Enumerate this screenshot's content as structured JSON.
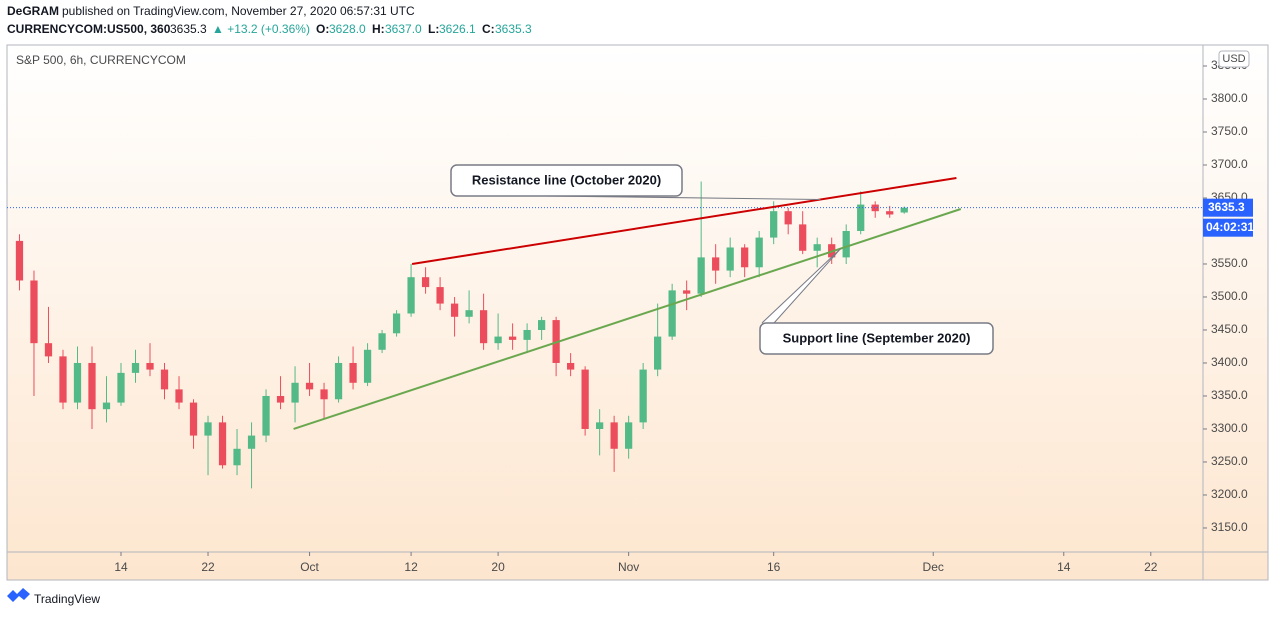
{
  "header": {
    "publisher": "DeGRAM",
    "published": "published on TradingView.com, November 27, 2020 06:57:31 UTC",
    "symbol": "CURRENCYCOM:US500, 360",
    "last": "3635.3",
    "change": "▲ +13.2 (+0.36%)",
    "o_label": "O:",
    "o": "3628.0",
    "h_label": "H:",
    "h": "3637.0",
    "l_label": "L:",
    "l": "3626.1",
    "c_label": "C:",
    "c": "3635.3"
  },
  "footer": {
    "brand": "TradingView"
  },
  "chart_data": {
    "type": "candlestick",
    "title": "S&P 500, 6h, CURRENCYCOM",
    "currency": "USD",
    "categories": [
      null,
      null,
      null,
      null,
      null,
      null,
      null,
      null,
      null,
      null,
      null,
      null,
      null,
      null,
      null,
      null,
      null,
      null,
      null,
      null,
      null,
      null,
      null,
      null,
      null,
      null,
      null,
      null,
      null,
      null,
      null,
      null,
      null,
      null,
      null,
      null,
      null,
      null,
      null,
      null,
      null,
      null,
      null,
      null,
      null,
      null,
      null,
      null,
      null,
      null,
      null,
      null,
      null,
      null,
      null,
      null,
      null,
      null,
      null,
      null,
      null,
      null
    ],
    "open": [
      3585,
      3525,
      3430,
      3410,
      3340,
      3400,
      3330,
      3340,
      3385,
      3400,
      3390,
      3360,
      3340,
      3290,
      3310,
      3245,
      3270,
      3290,
      3350,
      3340,
      3370,
      3360,
      3345,
      3400,
      3370,
      3420,
      3445,
      3475,
      3530,
      3515,
      3490,
      3470,
      3480,
      3430,
      3440,
      3435,
      3450,
      3465,
      3400,
      3390,
      3300,
      3310,
      3270,
      3310,
      3390,
      3440,
      3510,
      3505,
      3560,
      3540,
      3575,
      3545,
      3590,
      3630,
      3610,
      3570,
      3580,
      3560,
      3600,
      3640,
      3630,
      3628
    ],
    "high": [
      3595,
      3540,
      3485,
      3420,
      3425,
      3425,
      3380,
      3400,
      3420,
      3430,
      3400,
      3380,
      3345,
      3320,
      3320,
      3300,
      3310,
      3360,
      3380,
      3395,
      3400,
      3370,
      3410,
      3425,
      3430,
      3450,
      3480,
      3550,
      3545,
      3530,
      3500,
      3510,
      3505,
      3475,
      3460,
      3460,
      3470,
      3470,
      3415,
      3395,
      3330,
      3320,
      3320,
      3400,
      3490,
      3520,
      3525,
      3675,
      3580,
      3590,
      3580,
      3600,
      3645,
      3635,
      3630,
      3590,
      3590,
      3610,
      3660,
      3645,
      3638,
      3637
    ],
    "low": [
      3510,
      3350,
      3400,
      3330,
      3330,
      3300,
      3310,
      3335,
      3370,
      3380,
      3345,
      3330,
      3270,
      3230,
      3240,
      3230,
      3210,
      3280,
      3330,
      3310,
      3350,
      3315,
      3340,
      3360,
      3365,
      3415,
      3440,
      3470,
      3505,
      3480,
      3440,
      3460,
      3420,
      3420,
      3420,
      3415,
      3435,
      3380,
      3380,
      3290,
      3260,
      3235,
      3255,
      3300,
      3380,
      3435,
      3480,
      3500,
      3520,
      3530,
      3530,
      3530,
      3580,
      3595,
      3565,
      3545,
      3550,
      3550,
      3595,
      3620,
      3620,
      3626.1
    ],
    "close": [
      3525,
      3430,
      3410,
      3340,
      3400,
      3330,
      3340,
      3385,
      3400,
      3390,
      3360,
      3340,
      3290,
      3310,
      3245,
      3270,
      3290,
      3350,
      3340,
      3370,
      3360,
      3345,
      3400,
      3370,
      3420,
      3445,
      3475,
      3530,
      3515,
      3490,
      3470,
      3480,
      3430,
      3440,
      3435,
      3450,
      3465,
      3400,
      3390,
      3300,
      3310,
      3270,
      3310,
      3390,
      3440,
      3510,
      3505,
      3560,
      3540,
      3575,
      3545,
      3590,
      3630,
      3610,
      3570,
      3580,
      3560,
      3600,
      3640,
      3630,
      3625,
      3635.3
    ],
    "up_color": "#53b987",
    "down_color": "#eb4d5c",
    "last_price": {
      "value": 3635.3,
      "label": "3635.3"
    },
    "countdown": "04:02:31",
    "xlim": [
      -0.86,
      81.6
    ],
    "xticks": [
      {
        "value": 7,
        "label": "14"
      },
      {
        "value": 13,
        "label": "22"
      },
      {
        "value": 20,
        "label": "Oct"
      },
      {
        "value": 27,
        "label": "12"
      },
      {
        "value": 33,
        "label": "20"
      },
      {
        "value": 42,
        "label": "Nov"
      },
      {
        "value": 52,
        "label": "16"
      },
      {
        "value": 63,
        "label": "Dec"
      },
      {
        "value": 72,
        "label": "14"
      },
      {
        "value": 78,
        "label": "22"
      }
    ],
    "ylim": [
      3113.6,
      3881.8
    ],
    "yticks": [
      {
        "value": 3150,
        "label": "3150.0"
      },
      {
        "value": 3200,
        "label": "3200.0"
      },
      {
        "value": 3250,
        "label": "3250.0"
      },
      {
        "value": 3300,
        "label": "3300.0"
      },
      {
        "value": 3350,
        "label": "3350.0"
      },
      {
        "value": 3400,
        "label": "3400.0"
      },
      {
        "value": 3450,
        "label": "3450.0"
      },
      {
        "value": 3500,
        "label": "3500.0"
      },
      {
        "value": 3550,
        "label": "3550.0"
      },
      {
        "value": 3600,
        "label": "3600.0"
      },
      {
        "value": 3650,
        "label": "3650.0"
      },
      {
        "value": 3700,
        "label": "3700.0"
      },
      {
        "value": 3750,
        "label": "3750.0"
      },
      {
        "value": 3800,
        "label": "3800.0"
      },
      {
        "value": 3850,
        "label": "3850.0"
      }
    ],
    "grid": false,
    "trendlines": [
      {
        "text": "Resistance line (October 2020)",
        "color": "#cc0000",
        "x": [
          27.07,
          64.6
        ],
        "y": [
          3550,
          3680.3
        ]
      },
      {
        "text": "Support line (September 2020)",
        "color": "#6aa84f",
        "x": [
          18.9,
          64.9
        ],
        "y": [
          3300,
          3633.3
        ]
      }
    ]
  }
}
